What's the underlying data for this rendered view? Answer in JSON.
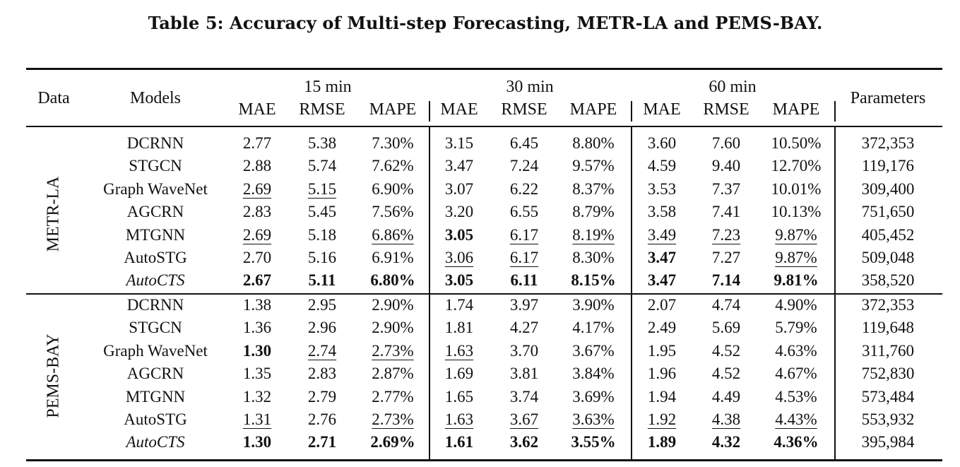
{
  "caption": "Table 5: Accuracy of Multi-step Forecasting, METR-LA and PEMS-BAY.",
  "header": {
    "data": "Data",
    "models": "Models",
    "parameters": "Parameters",
    "horizons": [
      "15 min",
      "30 min",
      "60 min"
    ],
    "metrics": [
      "MAE",
      "RMSE",
      "MAPE"
    ]
  },
  "sections": [
    {
      "dataset": "METR-LA",
      "rows": [
        {
          "model": "DCRNN",
          "italic": false,
          "values": [
            "2.77",
            "5.38",
            "7.30%",
            "3.15",
            "6.45",
            "8.80%",
            "3.60",
            "7.60",
            "10.50%"
          ],
          "bold": [],
          "underline": [],
          "params": "372,353"
        },
        {
          "model": "STGCN",
          "italic": false,
          "values": [
            "2.88",
            "5.74",
            "7.62%",
            "3.47",
            "7.24",
            "9.57%",
            "4.59",
            "9.40",
            "12.70%"
          ],
          "bold": [],
          "underline": [],
          "params": "119,176"
        },
        {
          "model": "Graph WaveNet",
          "italic": false,
          "values": [
            "2.69",
            "5.15",
            "6.90%",
            "3.07",
            "6.22",
            "8.37%",
            "3.53",
            "7.37",
            "10.01%"
          ],
          "bold": [],
          "underline": [
            0,
            1
          ],
          "params": "309,400"
        },
        {
          "model": "AGCRN",
          "italic": false,
          "values": [
            "2.83",
            "5.45",
            "7.56%",
            "3.20",
            "6.55",
            "8.79%",
            "3.58",
            "7.41",
            "10.13%"
          ],
          "bold": [],
          "underline": [],
          "params": "751,650"
        },
        {
          "model": "MTGNN",
          "italic": false,
          "values": [
            "2.69",
            "5.18",
            "6.86%",
            "3.05",
            "6.17",
            "8.19%",
            "3.49",
            "7.23",
            "9.87%"
          ],
          "bold": [
            3
          ],
          "underline": [
            0,
            2,
            4,
            5,
            6,
            7,
            8
          ],
          "params": "405,452"
        },
        {
          "model": "AutoSTG",
          "italic": false,
          "values": [
            "2.70",
            "5.16",
            "6.91%",
            "3.06",
            "6.17",
            "8.30%",
            "3.47",
            "7.27",
            "9.87%"
          ],
          "bold": [
            6
          ],
          "underline": [
            3,
            4,
            8
          ],
          "params": "509,048"
        },
        {
          "model": "AutoCTS",
          "italic": true,
          "values": [
            "2.67",
            "5.11",
            "6.80%",
            "3.05",
            "6.11",
            "8.15%",
            "3.47",
            "7.14",
            "9.81%"
          ],
          "bold": [
            0,
            1,
            2,
            3,
            4,
            5,
            6,
            7,
            8
          ],
          "underline": [],
          "params": "358,520"
        }
      ]
    },
    {
      "dataset": "PEMS-BAY",
      "rows": [
        {
          "model": "DCRNN",
          "italic": false,
          "values": [
            "1.38",
            "2.95",
            "2.90%",
            "1.74",
            "3.97",
            "3.90%",
            "2.07",
            "4.74",
            "4.90%"
          ],
          "bold": [],
          "underline": [],
          "params": "372,353"
        },
        {
          "model": "STGCN",
          "italic": false,
          "values": [
            "1.36",
            "2.96",
            "2.90%",
            "1.81",
            "4.27",
            "4.17%",
            "2.49",
            "5.69",
            "5.79%"
          ],
          "bold": [],
          "underline": [],
          "params": "119,648"
        },
        {
          "model": "Graph WaveNet",
          "italic": false,
          "values": [
            "1.30",
            "2.74",
            "2.73%",
            "1.63",
            "3.70",
            "3.67%",
            "1.95",
            "4.52",
            "4.63%"
          ],
          "bold": [
            0
          ],
          "underline": [
            1,
            2,
            3
          ],
          "params": "311,760"
        },
        {
          "model": "AGCRN",
          "italic": false,
          "values": [
            "1.35",
            "2.83",
            "2.87%",
            "1.69",
            "3.81",
            "3.84%",
            "1.96",
            "4.52",
            "4.67%"
          ],
          "bold": [],
          "underline": [],
          "params": "752,830"
        },
        {
          "model": "MTGNN",
          "italic": false,
          "values": [
            "1.32",
            "2.79",
            "2.77%",
            "1.65",
            "3.74",
            "3.69%",
            "1.94",
            "4.49",
            "4.53%"
          ],
          "bold": [],
          "underline": [],
          "params": "573,484"
        },
        {
          "model": "AutoSTG",
          "italic": false,
          "values": [
            "1.31",
            "2.76",
            "2.73%",
            "1.63",
            "3.67",
            "3.63%",
            "1.92",
            "4.38",
            "4.43%"
          ],
          "bold": [],
          "underline": [
            0,
            2,
            3,
            4,
            5,
            6,
            7,
            8
          ],
          "params": "553,932"
        },
        {
          "model": "AutoCTS",
          "italic": true,
          "values": [
            "1.30",
            "2.71",
            "2.69%",
            "1.61",
            "3.62",
            "3.55%",
            "1.89",
            "4.32",
            "4.36%"
          ],
          "bold": [
            0,
            1,
            2,
            3,
            4,
            5,
            6,
            7,
            8
          ],
          "underline": [],
          "params": "395,984"
        }
      ]
    }
  ]
}
